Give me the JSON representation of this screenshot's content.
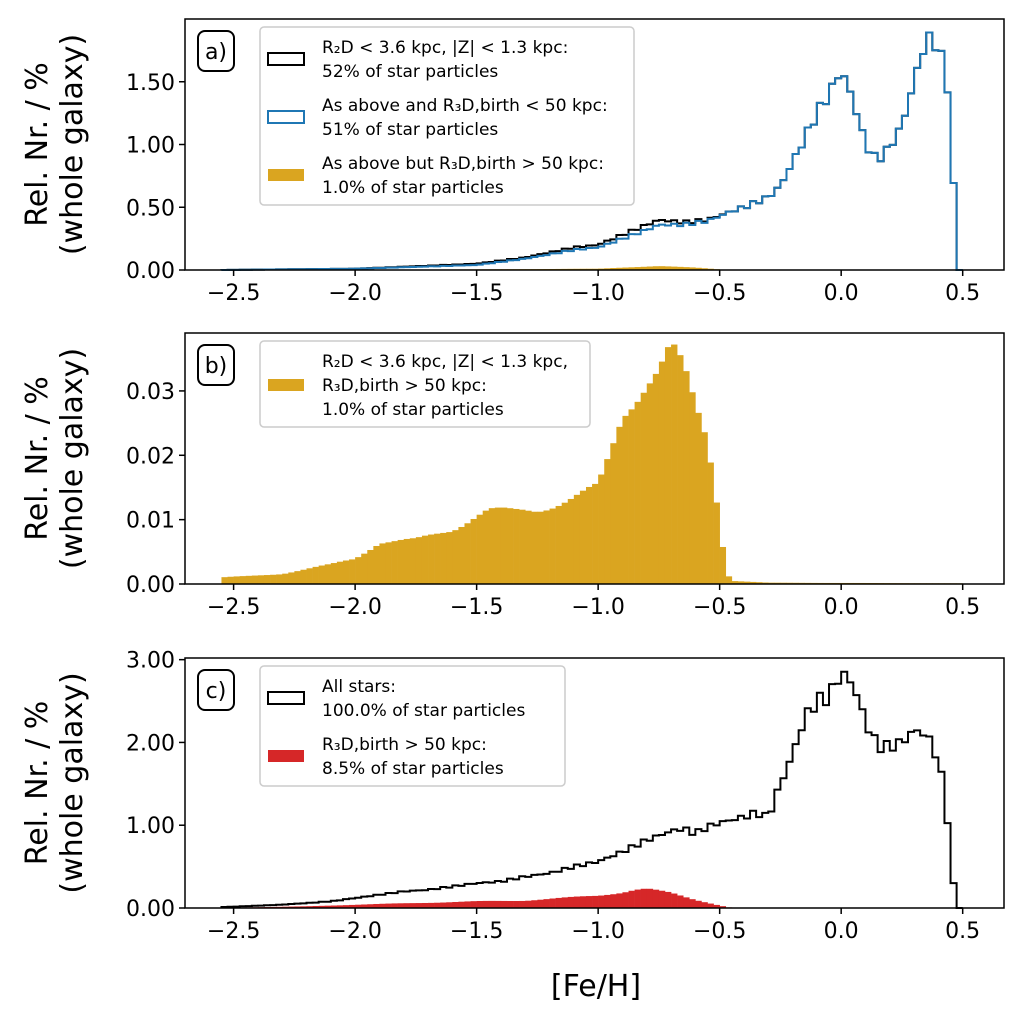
{
  "figure": {
    "xlabel": "[Fe/H]"
  },
  "chart_data": [
    {
      "type": "bar",
      "panel_label": "a)",
      "ylabel_line1": "Rel. Nr. / %",
      "ylabel_line2": "(whole galaxy)",
      "xlim": [
        -2.7,
        0.67
      ],
      "ylim": [
        0,
        2.0
      ],
      "xticks": [
        -2.5,
        -2.0,
        -1.5,
        -1.0,
        -0.5,
        0.0,
        0.5
      ],
      "xtick_labels": [
        "−2.5",
        "−2.0",
        "−1.5",
        "−1.0",
        "−0.5",
        "0.0",
        "0.5"
      ],
      "yticks": [
        0,
        0.5,
        1.0,
        1.5
      ],
      "ytick_labels": [
        "0.00",
        "0.50",
        "1.00",
        "1.50"
      ],
      "grid": false,
      "legend_position": "top-left",
      "bin_start": -2.55,
      "bin_width": 0.025,
      "series": [
        {
          "mode": "step",
          "color": "#000000",
          "legend_line1": "R₂D < 3.6 kpc, |Z| < 1.3 kpc:",
          "legend_line2": "52% of star particles",
          "anchors": [
            [
              -2.55,
              0.0
            ],
            [
              -2.3,
              0.005
            ],
            [
              -2.0,
              0.01
            ],
            [
              -1.5,
              0.05
            ],
            [
              -1.3,
              0.1
            ],
            [
              -1.1,
              0.18
            ],
            [
              -1.0,
              0.2
            ],
            [
              -0.9,
              0.28
            ],
            [
              -0.8,
              0.36
            ],
            [
              -0.75,
              0.4
            ],
            [
              -0.65,
              0.38
            ],
            [
              -0.55,
              0.4
            ],
            [
              -0.45,
              0.47
            ],
            [
              -0.4,
              0.5
            ],
            [
              -0.3,
              0.58
            ],
            [
              -0.25,
              0.67
            ],
            [
              -0.15,
              1.05
            ],
            [
              -0.1,
              1.25
            ],
            [
              -0.05,
              1.4
            ],
            [
              0.0,
              1.6
            ],
            [
              0.05,
              1.35
            ],
            [
              0.1,
              1.0
            ],
            [
              0.15,
              0.87
            ],
            [
              0.2,
              0.98
            ],
            [
              0.25,
              1.15
            ],
            [
              0.3,
              1.5
            ],
            [
              0.35,
              1.85
            ],
            [
              0.4,
              1.8
            ],
            [
              0.45,
              1.35
            ],
            [
              0.475,
              0.0
            ]
          ]
        },
        {
          "mode": "step",
          "color": "#1f77b4",
          "legend_line1": "As above and R₃D,birth < 50 kpc:",
          "legend_line2": "51% of star particles",
          "anchors": [
            [
              -2.55,
              0.0
            ],
            [
              -2.3,
              0.005
            ],
            [
              -2.0,
              0.01
            ],
            [
              -1.5,
              0.04
            ],
            [
              -1.3,
              0.09
            ],
            [
              -1.1,
              0.16
            ],
            [
              -1.0,
              0.18
            ],
            [
              -0.9,
              0.25
            ],
            [
              -0.8,
              0.32
            ],
            [
              -0.75,
              0.36
            ],
            [
              -0.65,
              0.36
            ],
            [
              -0.55,
              0.39
            ],
            [
              -0.45,
              0.47
            ],
            [
              -0.4,
              0.5
            ],
            [
              -0.3,
              0.58
            ],
            [
              -0.25,
              0.67
            ],
            [
              -0.15,
              1.05
            ],
            [
              -0.1,
              1.25
            ],
            [
              -0.05,
              1.4
            ],
            [
              0.0,
              1.6
            ],
            [
              0.05,
              1.35
            ],
            [
              0.1,
              1.0
            ],
            [
              0.15,
              0.87
            ],
            [
              0.2,
              0.98
            ],
            [
              0.25,
              1.15
            ],
            [
              0.3,
              1.5
            ],
            [
              0.35,
              1.85
            ],
            [
              0.4,
              1.8
            ],
            [
              0.45,
              1.35
            ],
            [
              0.475,
              0.0
            ]
          ]
        },
        {
          "mode": "filled",
          "color": "#daa520",
          "legend_line1": "As above but R₃D,birth > 50 kpc:",
          "legend_line2": "1.0% of star particles",
          "anchors": [
            [
              -2.55,
              0.0
            ],
            [
              -1.5,
              0.005
            ],
            [
              -1.0,
              0.01
            ],
            [
              -0.9,
              0.02
            ],
            [
              -0.75,
              0.03
            ],
            [
              -0.6,
              0.02
            ],
            [
              -0.5,
              0.005
            ],
            [
              -0.45,
              0.0
            ]
          ]
        }
      ]
    },
    {
      "type": "bar",
      "panel_label": "b)",
      "ylabel_line1": "Rel. Nr. / %",
      "ylabel_line2": "(whole galaxy)",
      "xlim": [
        -2.7,
        0.67
      ],
      "ylim": [
        0,
        0.039
      ],
      "xticks": [
        -2.5,
        -2.0,
        -1.5,
        -1.0,
        -0.5,
        0.0,
        0.5
      ],
      "xtick_labels": [
        "−2.5",
        "−2.0",
        "−1.5",
        "−1.0",
        "−0.5",
        "0.0",
        "0.5"
      ],
      "yticks": [
        0,
        0.01,
        0.02,
        0.03
      ],
      "ytick_labels": [
        "0.00",
        "0.01",
        "0.02",
        "0.03"
      ],
      "grid": false,
      "legend_position": "top-left",
      "bin_start": -2.55,
      "bin_width": 0.025,
      "series": [
        {
          "mode": "filled",
          "color": "#daa520",
          "legend_line1": "R₂D < 3.6 kpc, |Z| < 1.3 kpc,",
          "legend_line2": "R₃D,birth > 50 kpc:",
          "legend_line3": "1.0% of star particles",
          "anchors": [
            [
              -2.55,
              0.001
            ],
            [
              -2.45,
              0.0012
            ],
            [
              -2.3,
              0.0016
            ],
            [
              -2.1,
              0.003
            ],
            [
              -2.0,
              0.004
            ],
            [
              -1.9,
              0.0065
            ],
            [
              -1.75,
              0.0068
            ],
            [
              -1.6,
              0.0085
            ],
            [
              -1.5,
              0.0107
            ],
            [
              -1.45,
              0.0115
            ],
            [
              -1.35,
              0.0112
            ],
            [
              -1.25,
              0.0115
            ],
            [
              -1.1,
              0.0135
            ],
            [
              -1.0,
              0.015
            ],
            [
              -0.95,
              0.02
            ],
            [
              -0.9,
              0.026
            ],
            [
              -0.85,
              0.029
            ],
            [
              -0.8,
              0.032
            ],
            [
              -0.75,
              0.034
            ],
            [
              -0.7,
              0.037
            ],
            [
              -0.65,
              0.033
            ],
            [
              -0.6,
              0.027
            ],
            [
              -0.55,
              0.022
            ],
            [
              -0.5,
              0.01
            ],
            [
              -0.475,
              0.002
            ],
            [
              -0.45,
              0.0005
            ],
            [
              -0.3,
              0.0002
            ],
            [
              0.5,
              0.0001
            ]
          ]
        }
      ]
    },
    {
      "type": "bar",
      "panel_label": "c)",
      "ylabel_line1": "Rel. Nr. / %",
      "ylabel_line2": "(whole galaxy)",
      "xlim": [
        -2.7,
        0.67
      ],
      "ylim": [
        0,
        3.02
      ],
      "xticks": [
        -2.5,
        -2.0,
        -1.5,
        -1.0,
        -0.5,
        0.0,
        0.5
      ],
      "xtick_labels": [
        "−2.5",
        "−2.0",
        "−1.5",
        "−1.0",
        "−0.5",
        "0.0",
        "0.5"
      ],
      "yticks": [
        0,
        1.0,
        2.0,
        3.0
      ],
      "ytick_labels": [
        "0.00",
        "1.00",
        "2.00",
        "3.00"
      ],
      "grid": false,
      "legend_position": "top-left",
      "bin_start": -2.55,
      "bin_width": 0.025,
      "series": [
        {
          "mode": "step",
          "color": "#000000",
          "legend_line1": "All stars:",
          "legend_line2": "100.0% of star particles",
          "anchors": [
            [
              -2.55,
              0.01
            ],
            [
              -2.3,
              0.04
            ],
            [
              -2.1,
              0.08
            ],
            [
              -2.0,
              0.12
            ],
            [
              -1.9,
              0.16
            ],
            [
              -1.8,
              0.2
            ],
            [
              -1.7,
              0.22
            ],
            [
              -1.6,
              0.26
            ],
            [
              -1.5,
              0.3
            ],
            [
              -1.4,
              0.32
            ],
            [
              -1.3,
              0.38
            ],
            [
              -1.2,
              0.42
            ],
            [
              -1.1,
              0.5
            ],
            [
              -1.0,
              0.56
            ],
            [
              -0.9,
              0.68
            ],
            [
              -0.8,
              0.82
            ],
            [
              -0.7,
              0.93
            ],
            [
              -0.65,
              0.96
            ],
            [
              -0.6,
              0.9
            ],
            [
              -0.55,
              0.98
            ],
            [
              -0.5,
              1.03
            ],
            [
              -0.4,
              1.1
            ],
            [
              -0.35,
              1.15
            ],
            [
              -0.3,
              1.1
            ],
            [
              -0.25,
              1.5
            ],
            [
              -0.2,
              1.85
            ],
            [
              -0.15,
              2.3
            ],
            [
              -0.1,
              2.5
            ],
            [
              -0.05,
              2.55
            ],
            [
              0.0,
              2.85
            ],
            [
              0.05,
              2.7
            ],
            [
              0.1,
              2.25
            ],
            [
              0.15,
              1.95
            ],
            [
              0.2,
              1.95
            ],
            [
              0.25,
              2.0
            ],
            [
              0.3,
              2.15
            ],
            [
              0.35,
              2.1
            ],
            [
              0.4,
              1.8
            ],
            [
              0.43,
              1.3
            ],
            [
              0.46,
              0.35
            ],
            [
              0.475,
              0.0
            ]
          ]
        },
        {
          "mode": "filled",
          "color": "#d62728",
          "legend_line1": "R₃D,birth > 50 kpc:",
          "legend_line2": "8.5% of star particles",
          "anchors": [
            [
              -2.55,
              0.002
            ],
            [
              -2.2,
              0.02
            ],
            [
              -2.0,
              0.04
            ],
            [
              -1.75,
              0.06
            ],
            [
              -1.5,
              0.08
            ],
            [
              -1.3,
              0.09
            ],
            [
              -1.1,
              0.13
            ],
            [
              -1.0,
              0.15
            ],
            [
              -0.9,
              0.19
            ],
            [
              -0.85,
              0.22
            ],
            [
              -0.8,
              0.23
            ],
            [
              -0.7,
              0.18
            ],
            [
              -0.6,
              0.1
            ],
            [
              -0.5,
              0.03
            ],
            [
              -0.45,
              0.0
            ]
          ]
        }
      ]
    }
  ]
}
